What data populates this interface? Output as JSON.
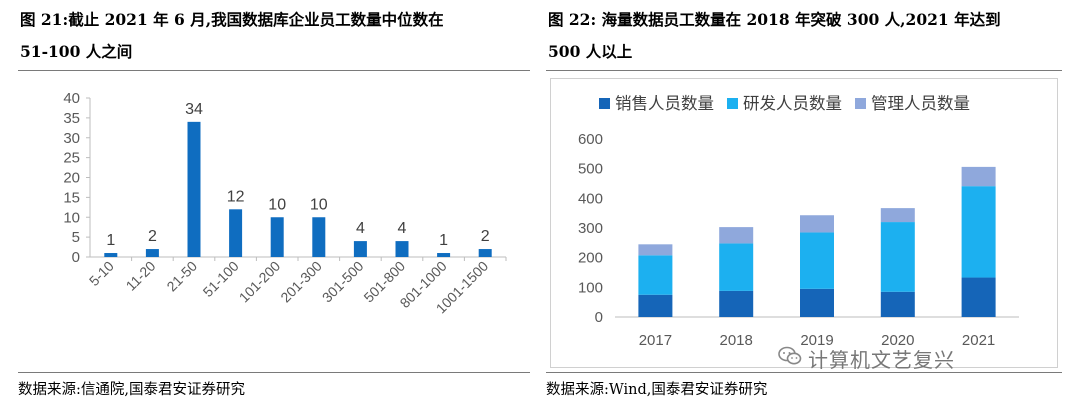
{
  "left": {
    "title_line1": "图 21:截止 2021 年 6 月,我国数据库企业员工数量中位数在",
    "title_line2": "51-100 人之间",
    "source": "数据来源:信通院,国泰君安证券研究"
  },
  "right": {
    "title_line1": "图 22: 海量数据员工数量在 2018 年突破 300 人,2021 年达到",
    "title_line2": "500 人以上",
    "source": "数据来源:Wind,国泰君安证券研究"
  },
  "watermark": {
    "text": "计算机文艺复兴",
    "icon": "wechat-icon"
  },
  "chart_data": [
    {
      "type": "bar",
      "title": "",
      "xlabel": "",
      "ylabel": "",
      "categories": [
        "5-10",
        "11-20",
        "21-50",
        "51-100",
        "101-200",
        "201-300",
        "301-500",
        "501-800",
        "801-1000",
        "1001-1500"
      ],
      "values": [
        1,
        2,
        34,
        12,
        10,
        10,
        4,
        4,
        1,
        2
      ],
      "data_labels": [
        "1",
        "2",
        "34",
        "12",
        "10",
        "10",
        "4",
        "4",
        "1",
        "2"
      ],
      "ylim": [
        0,
        40
      ],
      "yticks": [
        "0",
        "5",
        "10",
        "15",
        "20",
        "25",
        "30",
        "35",
        "40"
      ],
      "grid": false,
      "color": "#0F6DC0"
    },
    {
      "type": "bar",
      "stacked": true,
      "title": "",
      "xlabel": "",
      "ylabel": "",
      "categories": [
        "2017",
        "2018",
        "2019",
        "2020",
        "2021"
      ],
      "series": [
        {
          "name": "销售人员数量",
          "values": [
            75,
            88,
            95,
            85,
            133
          ],
          "color": "#1565B8"
        },
        {
          "name": "研发人员数量",
          "values": [
            133,
            160,
            190,
            235,
            308
          ],
          "color": "#1CB0F0"
        },
        {
          "name": "管理人员数量",
          "values": [
            37,
            55,
            58,
            47,
            65
          ],
          "color": "#8FA8DC"
        }
      ],
      "ylim": [
        0,
        600
      ],
      "yticks": [
        "0",
        "100",
        "200",
        "300",
        "400",
        "500",
        "600"
      ],
      "grid": false,
      "legend": "top"
    }
  ]
}
